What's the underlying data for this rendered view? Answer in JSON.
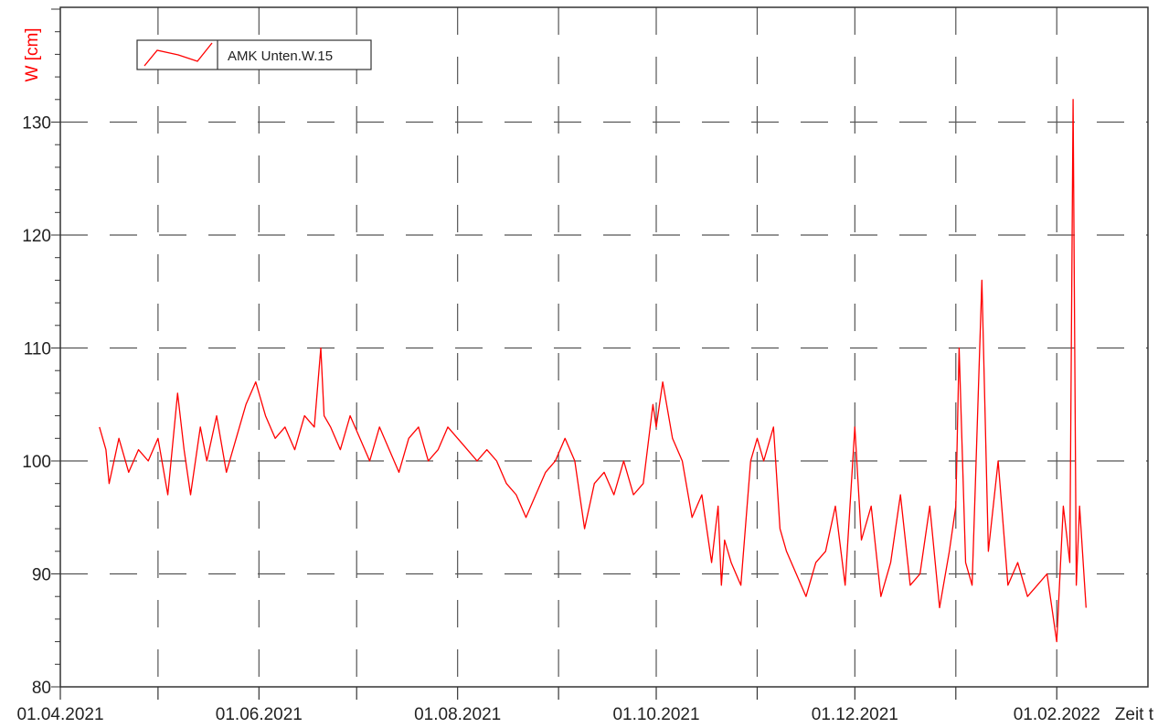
{
  "chart_data": {
    "type": "line",
    "ylabel": "W [cm]",
    "xlabel": "Zeit t",
    "ylim": [
      80,
      140
    ],
    "xlim": [
      "2021-04-01",
      "2022-03-01"
    ],
    "y_ticks": [
      80,
      90,
      100,
      110,
      120,
      130
    ],
    "x_ticks": [
      "01.04.2021",
      "01.06.2021",
      "01.08.2021",
      "01.10.2021",
      "01.12.2021",
      "01.02.2022"
    ],
    "x_tick_dates": [
      "2021-04-01",
      "2021-06-01",
      "2021-08-01",
      "2021-10-01",
      "2021-12-01",
      "2022-02-01"
    ],
    "x_minor_dates": [
      "2021-05-01",
      "2021-07-01",
      "2021-09-01",
      "2021-11-01",
      "2022-01-01"
    ],
    "grid": true,
    "legend_position": "top-left",
    "colors": {
      "series": "#ff0000",
      "ylabel": "#ff0000",
      "grid": "#555555",
      "frame": "#333333"
    },
    "series": [
      {
        "name": "AMK Unten.W.15",
        "x": [
          "2021-04-13",
          "2021-04-15",
          "2021-04-16",
          "2021-04-19",
          "2021-04-22",
          "2021-04-25",
          "2021-04-28",
          "2021-05-01",
          "2021-05-04",
          "2021-05-07",
          "2021-05-09",
          "2021-05-11",
          "2021-05-14",
          "2021-05-16",
          "2021-05-19",
          "2021-05-22",
          "2021-05-25",
          "2021-05-28",
          "2021-05-31",
          "2021-06-03",
          "2021-06-06",
          "2021-06-09",
          "2021-06-12",
          "2021-06-15",
          "2021-06-18",
          "2021-06-20",
          "2021-06-21",
          "2021-06-23",
          "2021-06-26",
          "2021-06-29",
          "2021-07-02",
          "2021-07-05",
          "2021-07-08",
          "2021-07-11",
          "2021-07-14",
          "2021-07-17",
          "2021-07-20",
          "2021-07-23",
          "2021-07-26",
          "2021-07-29",
          "2021-08-01",
          "2021-08-04",
          "2021-08-07",
          "2021-08-10",
          "2021-08-13",
          "2021-08-16",
          "2021-08-19",
          "2021-08-22",
          "2021-08-25",
          "2021-08-28",
          "2021-08-31",
          "2021-09-03",
          "2021-09-06",
          "2021-09-09",
          "2021-09-12",
          "2021-09-15",
          "2021-09-18",
          "2021-09-19",
          "2021-09-21",
          "2021-09-24",
          "2021-09-27",
          "2021-09-30",
          "2021-10-01",
          "2021-10-03",
          "2021-10-06",
          "2021-10-09",
          "2021-10-12",
          "2021-10-15",
          "2021-10-18",
          "2021-10-20",
          "2021-10-21",
          "2021-10-22",
          "2021-10-24",
          "2021-10-27",
          "2021-10-30",
          "2021-11-01",
          "2021-11-03",
          "2021-11-06",
          "2021-11-08",
          "2021-11-10",
          "2021-11-13",
          "2021-11-16",
          "2021-11-19",
          "2021-11-22",
          "2021-11-25",
          "2021-11-28",
          "2021-12-01",
          "2021-12-03",
          "2021-12-06",
          "2021-12-09",
          "2021-12-12",
          "2021-12-15",
          "2021-12-18",
          "2021-12-21",
          "2021-12-24",
          "2021-12-27",
          "2021-12-30",
          "2022-01-01",
          "2022-01-02",
          "2022-01-04",
          "2022-01-06",
          "2022-01-07",
          "2022-01-09",
          "2022-01-11",
          "2022-01-14",
          "2022-01-17",
          "2022-01-20",
          "2022-01-23",
          "2022-01-26",
          "2022-01-29",
          "2022-02-01",
          "2022-02-03",
          "2022-02-05",
          "2022-02-06",
          "2022-02-07",
          "2022-02-08",
          "2022-02-10"
        ],
        "y": [
          103,
          101,
          98,
          102,
          99,
          101,
          100,
          102,
          97,
          106,
          101,
          97,
          103,
          100,
          104,
          99,
          102,
          105,
          107,
          104,
          102,
          103,
          101,
          104,
          103,
          110,
          104,
          103,
          101,
          104,
          102,
          100,
          103,
          101,
          99,
          102,
          103,
          100,
          101,
          103,
          102,
          101,
          100,
          101,
          100,
          98,
          97,
          95,
          97,
          99,
          100,
          102,
          100,
          94,
          98,
          99,
          97,
          98,
          100,
          97,
          98,
          105,
          103,
          107,
          102,
          100,
          95,
          97,
          91,
          96,
          89,
          93,
          91,
          89,
          100,
          102,
          100,
          103,
          94,
          92,
          90,
          88,
          91,
          92,
          96,
          89,
          103,
          93,
          96,
          88,
          91,
          97,
          89,
          90,
          96,
          87,
          92,
          96,
          110,
          91,
          89,
          98,
          116,
          92,
          100,
          89,
          91,
          88,
          89,
          90,
          84,
          96,
          91,
          132,
          89,
          96,
          87
        ]
      }
    ]
  }
}
